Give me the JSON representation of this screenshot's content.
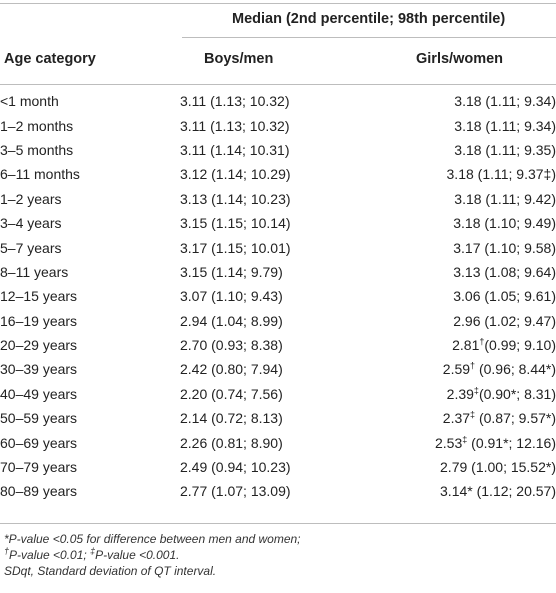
{
  "header": {
    "median": "Median (2nd percentile; 98th percentile)",
    "age": "Age category",
    "boys": "Boys/men",
    "girls": "Girls/women"
  },
  "rows": [
    {
      "age": "<1 month",
      "boys": "3.11 (1.13; 10.32)",
      "girls": "3.18 (1.11; 9.34)"
    },
    {
      "age": "1–2 months",
      "boys": "3.11 (1.13; 10.32)",
      "girls": "3.18 (1.11; 9.34)"
    },
    {
      "age": "3–5 months",
      "boys": "3.11 (1.14; 10.31)",
      "girls": "3.18 (1.11; 9.35)"
    },
    {
      "age": "6–11 months",
      "boys": "3.12 (1.14; 10.29)",
      "girls": "3.18 (1.11; 9.37‡)"
    },
    {
      "age": "1–2 years",
      "boys": "3.13 (1.14; 10.23)",
      "girls": "3.18 (1.11; 9.42)"
    },
    {
      "age": "3–4 years",
      "boys": "3.15 (1.15; 10.14)",
      "girls": "3.18 (1.10; 9.49)"
    },
    {
      "age": "5–7 years",
      "boys": "3.17 (1.15; 10.01)",
      "girls": "3.17 (1.10; 9.58)"
    },
    {
      "age": "8–11 years",
      "boys": "3.15 (1.14; 9.79)",
      "girls": "3.13 (1.08; 9.64)"
    },
    {
      "age": "12–15 years",
      "boys": "3.07 (1.10; 9.43)",
      "girls": "3.06 (1.05; 9.61)"
    },
    {
      "age": "16–19 years",
      "boys": "2.94 (1.04; 8.99)",
      "girls": "2.96 (1.02; 9.47)"
    },
    {
      "age": "20–29 years",
      "boys": "2.70 (0.93; 8.38)",
      "girls_parts": [
        "2.81",
        "†",
        "(0.99; 9.10)"
      ]
    },
    {
      "age": "30–39 years",
      "boys": "2.42 (0.80; 7.94)",
      "girls_parts": [
        "2.59",
        "†",
        " (0.96; 8.44*)"
      ]
    },
    {
      "age": "40–49 years",
      "boys": "2.20 (0.74; 7.56)",
      "girls_parts": [
        "2.39",
        "‡",
        "(0.90*; 8.31)"
      ]
    },
    {
      "age": "50–59 years",
      "boys": "2.14 (0.72; 8.13)",
      "girls_parts": [
        "2.37",
        "‡",
        " (0.87; 9.57*)"
      ]
    },
    {
      "age": "60–69 years",
      "boys": "2.26 (0.81; 8.90)",
      "girls_parts": [
        "2.53",
        "‡",
        " (0.91*; 12.16)"
      ]
    },
    {
      "age": "70–79 years",
      "boys": "2.49 (0.94; 10.23)",
      "girls": "2.79 (1.00; 15.52*)"
    },
    {
      "age": "80–89 years",
      "boys": "2.77 (1.07; 13.09)",
      "girls": "3.14* (1.12; 20.57)"
    }
  ],
  "notes": {
    "line1": "*P-value <0.05 for difference between men and women;",
    "line2_a": "†",
    "line2_b": "P-value <0.01; ",
    "line2_c": "‡",
    "line2_d": "P-value <0.001.",
    "line3": "SDqt, Standard deviation of QT interval."
  }
}
